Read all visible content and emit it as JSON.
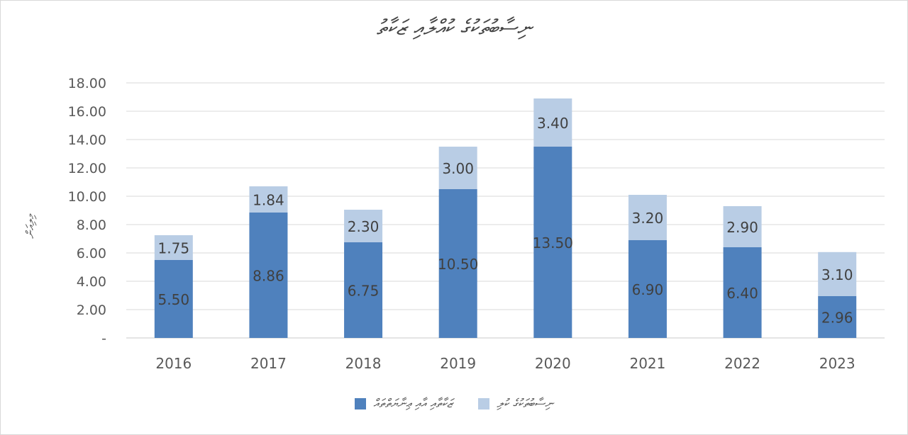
{
  "chart_data": {
    "type": "bar",
    "stacked": true,
    "title": "ނިސާބުތަކުގެ ކުއްލާއި ޒަކާތު",
    "ylabel": "މިލިއަން",
    "xlabel": "",
    "ylim": [
      0,
      18
    ],
    "yticks": [
      "-",
      "2.00",
      "4.00",
      "6.00",
      "8.00",
      "10.00",
      "12.00",
      "14.00",
      "16.00",
      "18.00"
    ],
    "categories": [
      "2016",
      "2017",
      "2018",
      "2019",
      "2020",
      "2021",
      "2022",
      "2023"
    ],
    "series": [
      {
        "name": "ޒަކާތާއި އާއި ޢިނާޔަތްތައް",
        "color": "#4f81bd",
        "values": [
          5.5,
          8.86,
          6.75,
          10.5,
          13.5,
          6.9,
          6.4,
          2.96
        ],
        "labels": [
          "5.50",
          "8.86",
          "6.75",
          "10.50",
          "13.50",
          "6.90",
          "6.40",
          "2.96"
        ]
      },
      {
        "name": "ނިސާބުތަކުގެ ކުލި",
        "color": "#b9cde5",
        "values": [
          1.75,
          1.84,
          2.3,
          3.0,
          3.4,
          3.2,
          2.9,
          3.1
        ],
        "labels": [
          "1.75",
          "1.84",
          "2.30",
          "3.00",
          "3.40",
          "3.20",
          "2.90",
          "3.10"
        ]
      }
    ],
    "grid": true,
    "legend_position": "bottom"
  }
}
